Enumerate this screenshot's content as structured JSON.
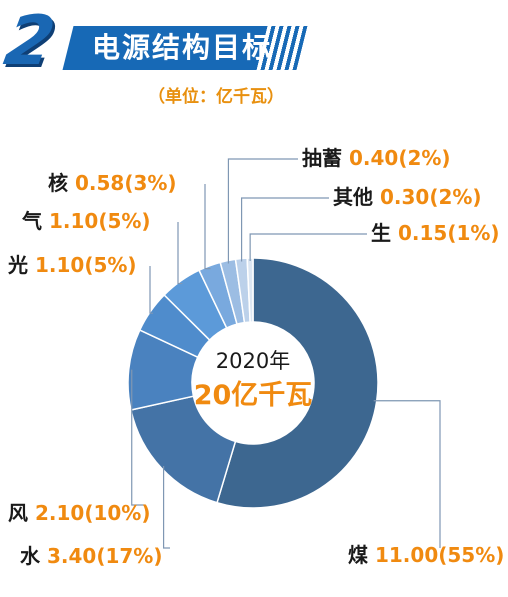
{
  "header": {
    "section_number": "2",
    "title": "电源结构目标",
    "unit": "（单位：亿千瓦）"
  },
  "chart_data": {
    "type": "pie",
    "title": "电源结构目标",
    "unit": "（单位：亿千瓦）",
    "center_year": "2020年",
    "center_total": "20亿千瓦",
    "slices": [
      {
        "name": "煤",
        "value": 11.0,
        "value_label": "11.00(55%)",
        "color": "#3d6790"
      },
      {
        "name": "水",
        "value": 3.4,
        "value_label": "3.40(17%)",
        "color": "#4473a6"
      },
      {
        "name": "风",
        "value": 2.1,
        "value_label": "2.10(10%)",
        "color": "#4a82bf"
      },
      {
        "name": "光",
        "value": 1.1,
        "value_label": "1.10(5%)",
        "color": "#4f8ccc"
      },
      {
        "name": "气",
        "value": 1.1,
        "value_label": "1.10(5%)",
        "color": "#5c9ad9"
      },
      {
        "name": "核",
        "value": 0.58,
        "value_label": "0.58(3%)",
        "color": "#79a9de"
      },
      {
        "name": "抽蓄",
        "value": 0.4,
        "value_label": "0.40(2%)",
        "color": "#9cbde3"
      },
      {
        "name": "其他",
        "value": 0.3,
        "value_label": "0.30(2%)",
        "color": "#bcd1ea"
      },
      {
        "name": "生",
        "value": 0.15,
        "value_label": "0.15(1%)",
        "color": "#dce6f2"
      }
    ]
  }
}
